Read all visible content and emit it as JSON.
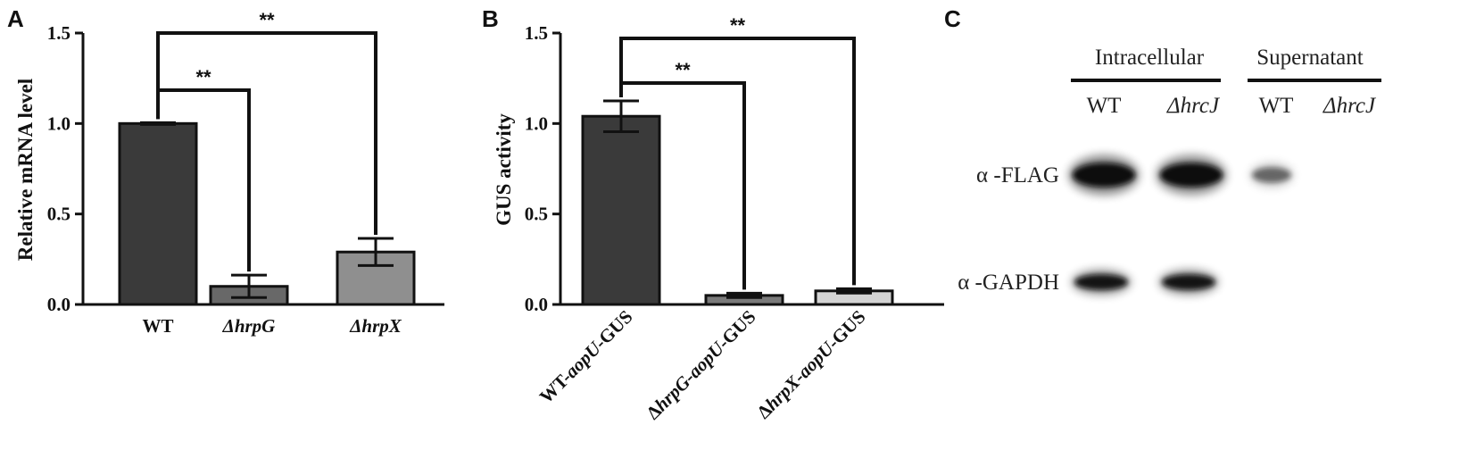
{
  "chart_data": [
    {
      "panel": "A",
      "type": "bar",
      "categories": [
        {
          "prefix": "",
          "italic": "",
          "suffix": "WT"
        },
        {
          "prefix": "",
          "italic": "ΔhrpG",
          "suffix": ""
        },
        {
          "prefix": "",
          "italic": "ΔhrpX",
          "suffix": ""
        }
      ],
      "values": [
        1.0,
        0.1,
        0.29
      ],
      "errors": [
        0.005,
        0.062,
        0.075
      ],
      "colors": [
        "#3a3a3a",
        "#686868",
        "#8f8f8f"
      ],
      "ylabel": "Relative mRNA level",
      "ylim": [
        0,
        1.5
      ],
      "yticks": [
        "0.0",
        "0.5",
        "1.0",
        "1.5"
      ],
      "significance": [
        {
          "from": 0,
          "to": 1,
          "label": "**"
        },
        {
          "from": 0,
          "to": 2,
          "label": "**"
        }
      ]
    },
    {
      "panel": "B",
      "type": "bar",
      "categories": [
        {
          "prefix": "WT-",
          "italic": "aopU",
          "suffix": "-GUS"
        },
        {
          "prefix": "Δ",
          "italic": "hrpG-aopU",
          "suffix": "-GUS"
        },
        {
          "prefix": "Δ",
          "italic": "hrpX-aopU",
          "suffix": "-GUS"
        }
      ],
      "values": [
        1.04,
        0.05,
        0.075
      ],
      "errors": [
        0.085,
        0.012,
        0.012
      ],
      "colors": [
        "#3a3a3a",
        "#7a7a7a",
        "#d4d4d4"
      ],
      "ylabel": "GUS activity",
      "ylim": [
        0,
        1.5
      ],
      "yticks": [
        "0.0",
        "0.5",
        "1.0",
        "1.5"
      ],
      "significance": [
        {
          "from": 0,
          "to": 1,
          "label": "**"
        },
        {
          "from": 0,
          "to": 2,
          "label": "**"
        }
      ]
    }
  ],
  "blot": {
    "panel": "C",
    "group_headers": [
      "Intracellular",
      "Supernatant"
    ],
    "lanes": [
      {
        "label": "WT",
        "italic": false
      },
      {
        "label": "ΔhrcJ",
        "italic": true
      },
      {
        "label": "WT",
        "italic": false
      },
      {
        "label": "ΔhrcJ",
        "italic": true
      }
    ],
    "rows": [
      {
        "label": "α -FLAG",
        "intensities": [
          1.0,
          0.95,
          0.45,
          0
        ]
      },
      {
        "label": "α -GAPDH",
        "intensities": [
          0.9,
          0.9,
          0,
          0
        ]
      }
    ]
  }
}
